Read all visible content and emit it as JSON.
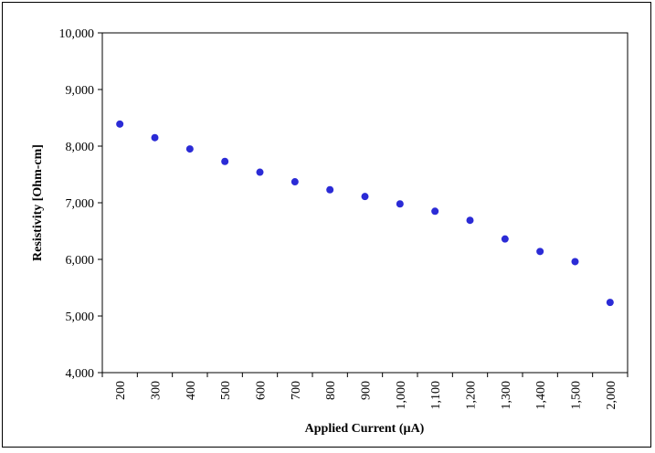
{
  "chart_data": {
    "type": "scatter",
    "xlabel": "Applied Current (µA)",
    "ylabel": "Resistivity [Ohm-cm]",
    "categories": [
      "200",
      "300",
      "400",
      "500",
      "600",
      "700",
      "800",
      "900",
      "1,000",
      "1,100",
      "1,200",
      "1,300",
      "1,400",
      "1,500",
      "2,000"
    ],
    "series": [
      {
        "values": [
          8390,
          8150,
          7950,
          7730,
          7540,
          7370,
          7230,
          7110,
          6980,
          6850,
          6690,
          6360,
          6140,
          5960,
          5240
        ]
      }
    ],
    "ylim": [
      4000,
      10000
    ],
    "yticks": [
      4000,
      5000,
      6000,
      7000,
      8000,
      9000,
      10000
    ],
    "ytick_labels": [
      "4,000",
      "5,000",
      "6,000",
      "7,000",
      "8,000",
      "9,000",
      "10,000"
    ],
    "grid": false,
    "legend": "none",
    "colors": {
      "marker": "#2b2bd6",
      "axis": "#000000"
    }
  }
}
